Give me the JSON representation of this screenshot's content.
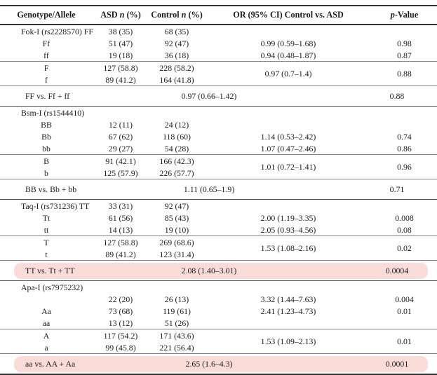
{
  "colors": {
    "highlight": "#f9dbd7",
    "heavy": "#333333",
    "group": "#4d4d4d",
    "light": "#7d7d7d",
    "text": "#1b1b1b"
  },
  "header": {
    "columns": [
      {
        "pre": "Genotype/Allele",
        "it": "",
        "post": ""
      },
      {
        "pre": "ASD ",
        "it": "n",
        "post": " (%)"
      },
      {
        "pre": "Control ",
        "it": "n",
        "post": " (%)"
      },
      {
        "pre": "OR (95% CI) Control vs. ASD",
        "it": "",
        "post": ""
      },
      {
        "pre": "",
        "it": "p",
        "post": "-Value"
      }
    ]
  },
  "sections": [
    {
      "type": "genotypes",
      "border": "none",
      "rows": [
        {
          "label": "Fok-I (rs2228570) FF",
          "left": true,
          "asd": "38 (35)",
          "control": "68 (35)",
          "or": "",
          "p": ""
        },
        {
          "label": "Ff",
          "asd": "51 (47)",
          "control": "92 (47)",
          "or": "0.99 (0.59–1.68)",
          "p": "0.98"
        },
        {
          "label": "ff",
          "asd": "19 (18)",
          "control": "36 (18)",
          "or": "0.94 (0.48–1.87)",
          "p": "0.87"
        }
      ]
    },
    {
      "type": "pair",
      "border": "thin",
      "or": "0.97 (0.7–1.4)",
      "p": "0.88",
      "rows": [
        {
          "label": "F",
          "asd": "127 (58.8)",
          "control": "228 (58.2)"
        },
        {
          "label": "f",
          "asd": "89 (41.2)",
          "control": "164 (41.8)"
        }
      ]
    },
    {
      "type": "vs",
      "border": "thin",
      "label": "FF vs. Ff + ff",
      "or": "0.97 (0.66–1.42)",
      "p": "0.88",
      "highlight": false
    },
    {
      "type": "genotypes",
      "border": "group",
      "rows": [
        {
          "label": "Bsm-I (rs1544410)",
          "left": true,
          "asd": "",
          "control": "",
          "or": "",
          "p": ""
        },
        {
          "label": "BB",
          "asd": "12 (11)",
          "control": "24 (12)",
          "or": "",
          "p": ""
        },
        {
          "label": "Bb",
          "asd": "67 (62)",
          "control": "118 (60)",
          "or": "1.14 (0.53–2.42)",
          "p": "0.74"
        },
        {
          "label": "bb",
          "asd": "29 (27)",
          "control": "54 (28)",
          "or": "1.07 (0.47–2.46)",
          "p": "0.86"
        }
      ]
    },
    {
      "type": "pair",
      "border": "thin",
      "or": "1.01 (0.72–1.41)",
      "p": "0.96",
      "rows": [
        {
          "label": "B",
          "asd": "91 (42.1)",
          "control": "166 (42.3)"
        },
        {
          "label": "b",
          "asd": "125 (57.9)",
          "control": "226 (57.7)"
        }
      ]
    },
    {
      "type": "vs",
      "border": "thin",
      "label": "BB vs. Bb + bb",
      "or": "1.11 (0.65–1.9)",
      "p": "0.71",
      "highlight": false
    },
    {
      "type": "genotypes",
      "border": "group",
      "rows": [
        {
          "label": "Taq-I (rs731236) TT",
          "left": true,
          "asd": "33 (31)",
          "control": "92 (47)",
          "or": "",
          "p": ""
        },
        {
          "label": "Tt",
          "asd": "61 (56)",
          "control": "85 (43)",
          "or": "2.00 (1.19–3.35)",
          "p": "0.008"
        },
        {
          "label": "tt",
          "asd": "14 (13)",
          "control": "19 (10)",
          "or": "2.05 (0.93–4.56)",
          "p": "0.08"
        }
      ]
    },
    {
      "type": "pair",
      "border": "thin",
      "or": "1.53 (1.08–2.16)",
      "p": "0.02",
      "rows": [
        {
          "label": "T",
          "asd": "127 (58.8)",
          "control": "269 (68.6)"
        },
        {
          "label": "t",
          "asd": "89 (41.2)",
          "control": "123 (31.4)"
        }
      ]
    },
    {
      "type": "vs",
      "border": "thin",
      "label": "TT vs. Tt + TT",
      "or": "2.08 (1.40–3.01)",
      "p": "0.0004",
      "highlight": true
    },
    {
      "type": "genotypes",
      "border": "group",
      "rows": [
        {
          "label": "Apa-I (rs7975232)",
          "left": true,
          "asd": "",
          "control": "",
          "or": "",
          "p": ""
        },
        {
          "label": "",
          "asd": "22 (20)",
          "control": "26 (13)",
          "or": "3.32 (1.44–7.63)",
          "p": "0.004"
        },
        {
          "label": "Aa",
          "asd": "73 (68)",
          "control": "119 (61)",
          "or": "2.41 (1.23–4.73)",
          "p": "0.01"
        },
        {
          "label": "aa",
          "asd": "13 (12)",
          "control": "51 (26)",
          "or": "",
          "p": ""
        }
      ]
    },
    {
      "type": "pair",
      "border": "thin",
      "or": "1.53 (1.09–2.13)",
      "p": "0.01",
      "rows": [
        {
          "label": "A",
          "asd": "117 (54.2)",
          "control": "171 (43.6)"
        },
        {
          "label": "a",
          "asd": "99 (45.8)",
          "control": "221 (56.4)"
        }
      ]
    },
    {
      "type": "vs",
      "border": "thin",
      "label": "aa vs. AA + Aa",
      "or": "2.65 (1.6–4.3)",
      "p": "0.0001",
      "highlight": true
    }
  ]
}
